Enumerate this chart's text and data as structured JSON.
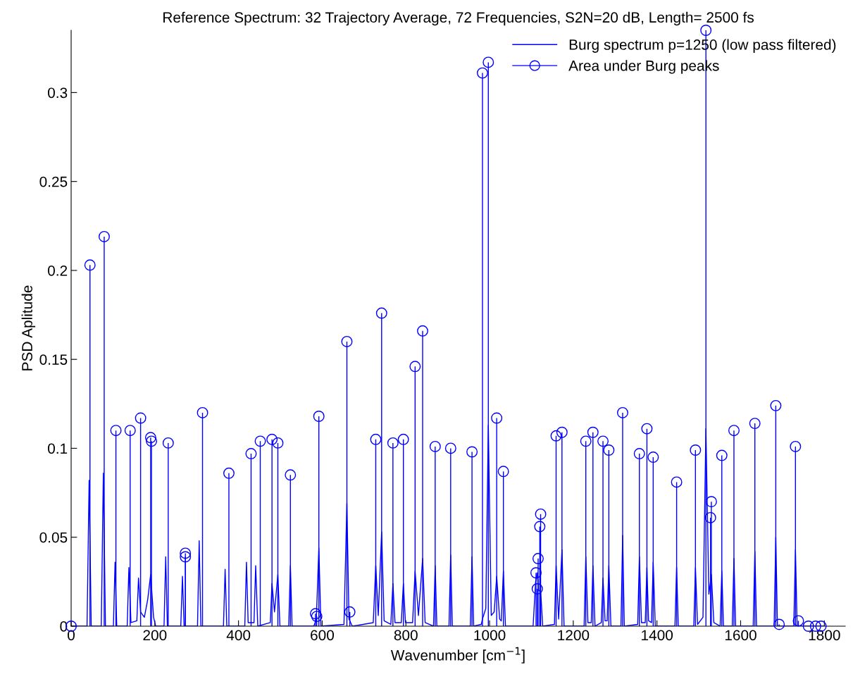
{
  "chart_data": {
    "type": "line",
    "title": "Reference Spectrum: 32 Trajectory Average, 72 Frequencies, S2N=20 dB, Length= 2500 fs",
    "xlabel": "Wavenumber [cm$^{−1}$]",
    "ylabel": "PSD Aplitude",
    "xlim": [
      0,
      1850
    ],
    "xticks": [
      0,
      200,
      400,
      600,
      800,
      1000,
      1200,
      1400,
      1600,
      1800
    ],
    "ylim": [
      0,
      0.335
    ],
    "yticks": [
      0,
      0.05,
      0.1,
      0.15,
      0.2,
      0.25,
      0.3
    ],
    "grid": false,
    "legend": "top right",
    "series": [
      {
        "name": "Burg spectrum p=1250 (low pass filtered)",
        "color": "#0000ff",
        "marker": "none",
        "line_style": "solid",
        "x": [
          0,
          38,
          43,
          48,
          72,
          77,
          82,
          101,
          105,
          109,
          134,
          138,
          143,
          157,
          161,
          166,
          175,
          183,
          190,
          197,
          202,
          222,
          226,
          230,
          262,
          266,
          270,
          302,
          306,
          310,
          364,
          368,
          372,
          415,
          419,
          423,
          437,
          441,
          446,
          476,
          480,
          486,
          494,
          499,
          520,
          524,
          528,
          580,
          586,
          592,
          597,
          652,
          659,
          664,
          668,
          672,
          722,
          728,
          734,
          742,
          748,
          764,
          769,
          774,
          789,
          794,
          799,
          816,
          822,
          830,
          840,
          846,
          866,
          870,
          874,
          903,
          907,
          911,
          954,
          958,
          962,
          980,
          983,
          991,
          997,
          1004,
          1011,
          1017,
          1024,
          1028,
          1033,
          1038,
          1104,
          1110,
          1114,
          1117,
          1122,
          1127,
          1155,
          1159,
          1165,
          1173,
          1178,
          1226,
          1230,
          1235,
          1243,
          1247,
          1252,
          1267,
          1271,
          1276,
          1281,
          1285,
          1290,
          1314,
          1318,
          1322,
          1354,
          1358,
          1363,
          1372,
          1376,
          1380,
          1387,
          1391,
          1396,
          1443,
          1447,
          1451,
          1488,
          1492,
          1497,
          1510,
          1517,
          1524,
          1530,
          1536,
          1551,
          1555,
          1559,
          1580,
          1584,
          1588,
          1630,
          1634,
          1638,
          1680,
          1684,
          1688,
          1727,
          1731,
          1735,
          1800
        ],
        "values": [
          0,
          0,
          0.082,
          0,
          0,
          0.086,
          0,
          0,
          0.036,
          0,
          0,
          0.033,
          0.002,
          0.003,
          0.027,
          0.008,
          0.005,
          0.015,
          0.029,
          0.005,
          0,
          0,
          0.039,
          0,
          0,
          0.028,
          0,
          0,
          0.048,
          0,
          0,
          0.032,
          0,
          0,
          0.036,
          0.002,
          0.002,
          0.034,
          0,
          0.002,
          0.024,
          0.008,
          0.029,
          0,
          0,
          0.034,
          0,
          0,
          0.004,
          0.044,
          0,
          0.001,
          0.069,
          0.004,
          0.002,
          0,
          0.002,
          0.034,
          0.006,
          0.053,
          0.003,
          0.001,
          0.024,
          0.002,
          0.002,
          0.024,
          0.002,
          0.002,
          0.031,
          0.006,
          0.038,
          0.002,
          0,
          0.034,
          0,
          0,
          0.04,
          0,
          0,
          0.039,
          0,
          0.001,
          0.004,
          0.01,
          0.113,
          0.006,
          0.008,
          0.028,
          0.004,
          0.003,
          0.031,
          0,
          0,
          0.025,
          0.03,
          0.02,
          0.02,
          0,
          0.001,
          0.034,
          0.004,
          0.043,
          0,
          0,
          0.039,
          0.002,
          0.002,
          0.034,
          0,
          0.002,
          0.027,
          0.003,
          0.003,
          0.034,
          0,
          0,
          0.051,
          0,
          0.001,
          0.039,
          0.002,
          0.002,
          0.033,
          0.003,
          0.002,
          0.036,
          0,
          0,
          0.033,
          0,
          0,
          0.033,
          0.001,
          0.005,
          0.111,
          0.018,
          0.029,
          0.002,
          0,
          0.031,
          0,
          0,
          0.038,
          0,
          0,
          0.042,
          0,
          0,
          0.05,
          0,
          0,
          0.043,
          0,
          0
        ]
      },
      {
        "name": "Area under Burg peaks",
        "type": "lollipop",
        "color": "#0000ff",
        "marker": "circle",
        "line_style": "solid",
        "x": [
          0,
          45,
          79,
          107,
          141,
          166,
          190,
          192,
          232,
          273,
          273,
          314,
          377,
          430,
          452,
          480,
          494,
          524,
          584,
          587,
          592,
          659,
          666,
          728,
          742,
          769,
          794,
          822,
          840,
          870,
          907,
          958,
          983,
          997,
          1017,
          1033,
          1111,
          1114,
          1116,
          1120,
          1122,
          1159,
          1173,
          1230,
          1247,
          1271,
          1285,
          1318,
          1358,
          1376,
          1391,
          1447,
          1492,
          1517,
          1528,
          1530,
          1555,
          1584,
          1634,
          1684,
          1692,
          1731,
          1738,
          1762,
          1779,
          1792
        ],
        "values": [
          0,
          0.203,
          0.219,
          0.11,
          0.11,
          0.117,
          0.106,
          0.104,
          0.103,
          0.041,
          0.039,
          0.12,
          0.086,
          0.097,
          0.104,
          0.105,
          0.103,
          0.085,
          0.007,
          0.0055,
          0.118,
          0.16,
          0.008,
          0.105,
          0.176,
          0.103,
          0.105,
          0.146,
          0.166,
          0.101,
          0.1,
          0.098,
          0.311,
          0.317,
          0.117,
          0.087,
          0.03,
          0.021,
          0.038,
          0.056,
          0.063,
          0.107,
          0.109,
          0.104,
          0.109,
          0.104,
          0.099,
          0.12,
          0.097,
          0.111,
          0.095,
          0.081,
          0.099,
          0.335,
          0.061,
          0.07,
          0.096,
          0.11,
          0.114,
          0.124,
          0.001,
          0.101,
          0.003,
          0,
          0,
          0
        ]
      }
    ]
  }
}
